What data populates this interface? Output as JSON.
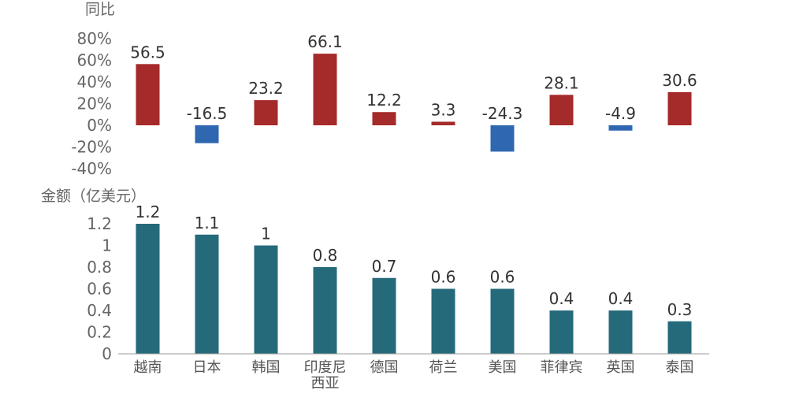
{
  "chart_data": [
    {
      "type": "bar",
      "ylabel": "同比",
      "y_ticks": [
        "80%",
        "60%",
        "40%",
        "20%",
        "0%",
        "-20%",
        "-40%"
      ],
      "ylim": [
        -40,
        80
      ],
      "categories": [
        "越南",
        "日本",
        "韩国",
        "印度尼西亚",
        "德国",
        "荷兰",
        "美国",
        "菲律宾",
        "英国",
        "泰国"
      ],
      "values": [
        56.5,
        -16.5,
        23.2,
        66.1,
        12.2,
        3.3,
        -24.3,
        28.1,
        -4.9,
        30.6
      ],
      "data_labels": [
        "56.5",
        "-16.5",
        "23.2",
        "66.1",
        "12.2",
        "3.3",
        "-24.3",
        "28.1",
        "-4.9",
        "30.6"
      ],
      "colors": {
        "positive": "#a52a2a",
        "negative": "#2f67b1"
      },
      "grid": false
    },
    {
      "type": "bar",
      "ylabel": "金额（亿美元）",
      "y_ticks": [
        "1.2",
        "1",
        "0.8",
        "0.6",
        "0.4",
        "0.2",
        "0"
      ],
      "ylim": [
        0,
        1.2
      ],
      "categories": [
        "越南",
        "日本",
        "韩国",
        "印度尼西亚",
        "德国",
        "荷兰",
        "美国",
        "菲律宾",
        "英国",
        "泰国"
      ],
      "category_labels": [
        [
          "越南"
        ],
        [
          "日本"
        ],
        [
          "韩国"
        ],
        [
          "印度尼",
          "西亚"
        ],
        [
          "德国"
        ],
        [
          "荷兰"
        ],
        [
          "美国"
        ],
        [
          "菲律宾"
        ],
        [
          "英国"
        ],
        [
          "泰国"
        ]
      ],
      "values": [
        1.2,
        1.1,
        1,
        0.8,
        0.7,
        0.6,
        0.6,
        0.4,
        0.4,
        0.3
      ],
      "data_labels": [
        "1.2",
        "1.1",
        "1",
        "0.8",
        "0.7",
        "0.6",
        "0.6",
        "0.4",
        "0.4",
        "0.3"
      ],
      "colors": {
        "bar": "#256a7a"
      },
      "grid": false
    }
  ]
}
